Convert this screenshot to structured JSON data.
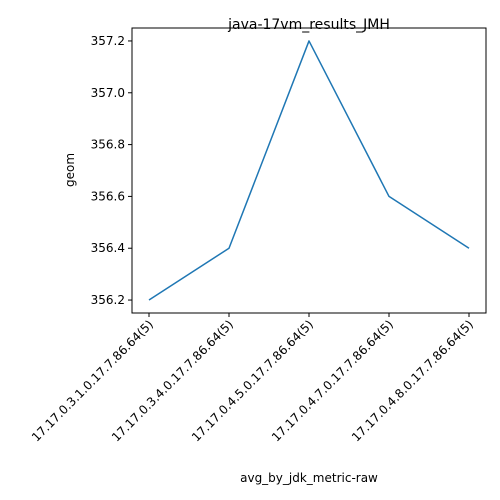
{
  "chart_data": {
    "type": "line",
    "title": "java-17vm_results_JMH",
    "xlabel": "avg_by_jdk_metric-raw",
    "ylabel": "geom",
    "categories": [
      "17.17.0.3.1.0.17.7.86.64(5)",
      "17.17.0.3.4.0.17.7.86.64(5)",
      "17.17.0.4.5.0.17.7.86.64(5)",
      "17.17.0.4.7.0.17.7.86.64(5)",
      "17.17.0.4.8.0.17.7.86.64(5)"
    ],
    "series": [
      {
        "values": [
          356.2,
          356.4,
          357.2,
          356.6,
          356.4
        ],
        "color": "#1f77b4"
      }
    ],
    "yticks": [
      "356.2",
      "356.4",
      "356.6",
      "356.8",
      "357.0",
      "357.2"
    ],
    "ylim": [
      356.15,
      357.25
    ],
    "grid": false
  }
}
